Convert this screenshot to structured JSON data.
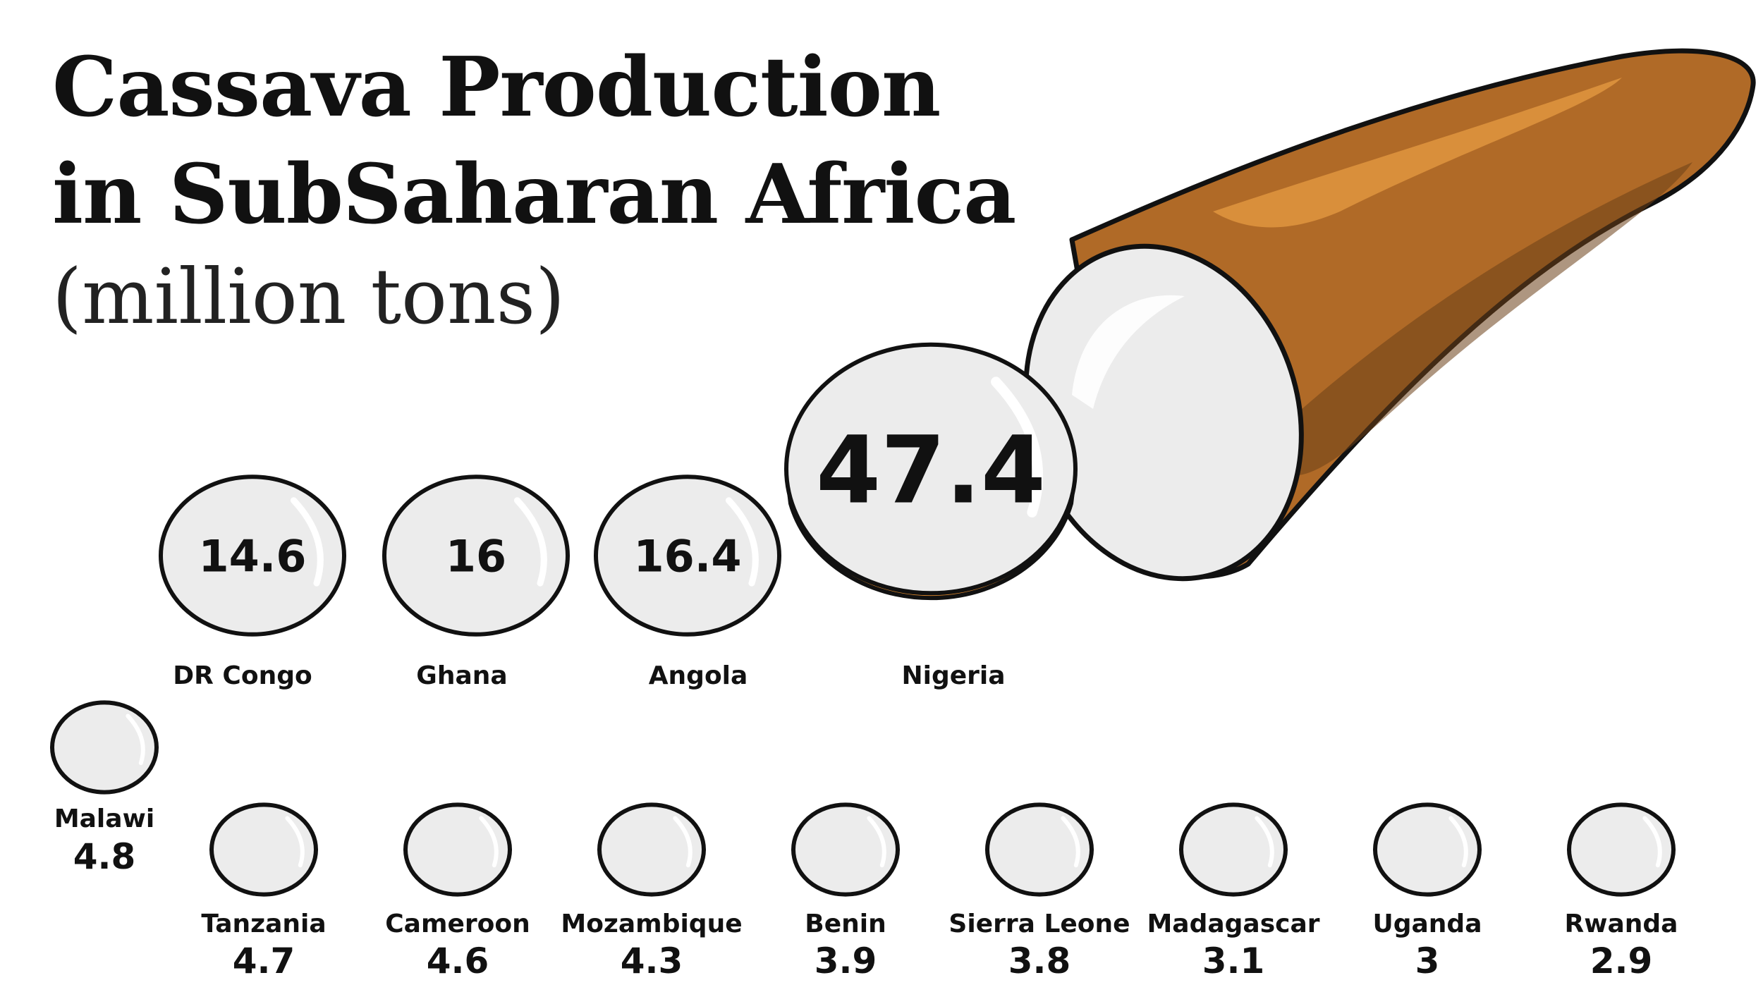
{
  "title_line1": "Cassava Production",
  "title_line2": "in SubSaharan Africa",
  "subtitle": "(million tons)",
  "colors": {
    "flesh": "#ececec",
    "skin": "#e08a2e",
    "skin_dark": "#7a4a1e",
    "outline": "#111111"
  },
  "chart_data": {
    "type": "bar",
    "title": "Cassava Production in SubSaharan Africa",
    "unit": "(million tons)",
    "categories": [
      "Nigeria",
      "Angola",
      "Ghana",
      "DR Congo",
      "Malawi",
      "Tanzania",
      "Cameroon",
      "Mozambique",
      "Benin",
      "Sierra Leone",
      "Madagascar",
      "Uganda",
      "Rwanda"
    ],
    "values": [
      47.4,
      16.4,
      16,
      14.6,
      4.8,
      4.7,
      4.6,
      4.3,
      3.9,
      3.8,
      3.1,
      3,
      2.9
    ]
  }
}
